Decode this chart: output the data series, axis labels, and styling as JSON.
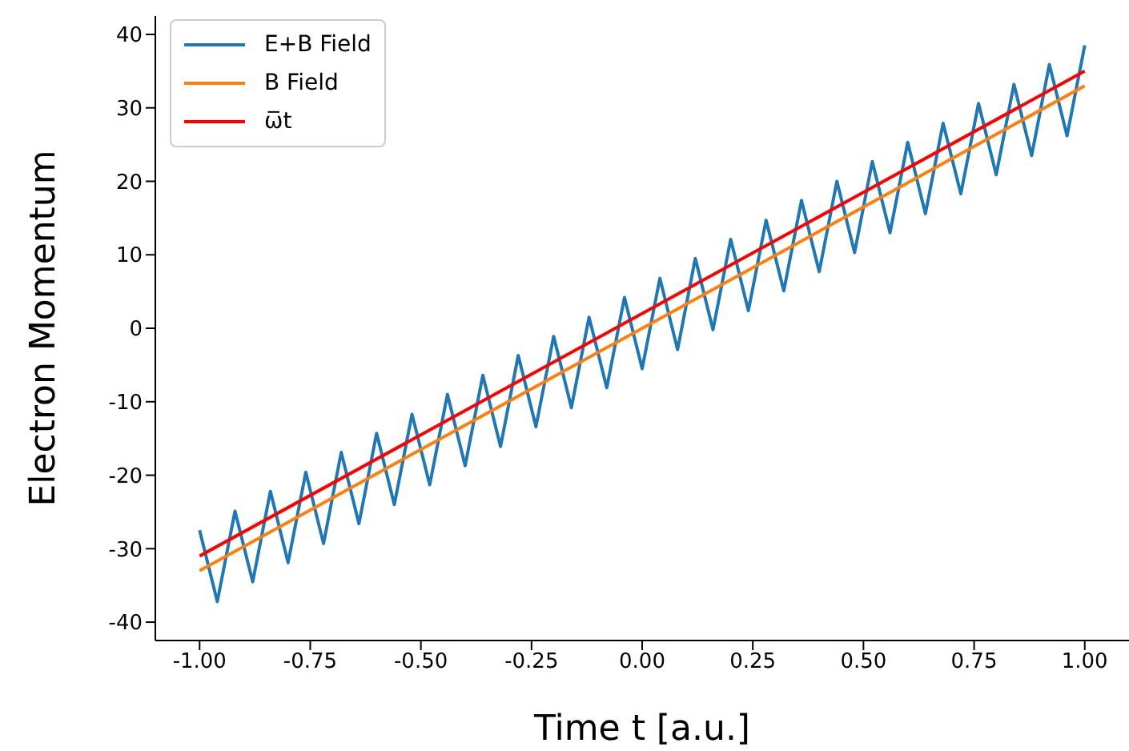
{
  "chart_data": {
    "type": "line",
    "xlabel": "Time t [a.u.]",
    "ylabel": "Electron Momentum",
    "legend": "top left",
    "grid": false,
    "marker": "none",
    "line_style": "solid",
    "xlim": [
      -1.1,
      1.1
    ],
    "ylim": [
      -42.5,
      42.5
    ],
    "xticks": [
      {
        "value": -1,
        "label": "-1.00"
      },
      {
        "value": -0.75,
        "label": "-0.75"
      },
      {
        "value": -0.5,
        "label": "-0.50"
      },
      {
        "value": -0.25,
        "label": "-0.25"
      },
      {
        "value": 0,
        "label": "0.00"
      },
      {
        "value": 0.25,
        "label": "0.25"
      },
      {
        "value": 0.5,
        "label": "0.50"
      },
      {
        "value": 0.75,
        "label": "0.75"
      },
      {
        "value": 1,
        "label": "1.00"
      }
    ],
    "yticks": [
      -40,
      -30,
      -20,
      -10,
      0,
      10,
      20,
      30,
      40
    ],
    "series": [
      {
        "name": "E+B Field",
        "color": "#1f77b4",
        "x": [
          -1,
          -0.96,
          -0.92,
          -0.88,
          -0.84,
          -0.8,
          -0.76,
          -0.72,
          -0.68,
          -0.64,
          -0.6,
          -0.56,
          -0.52,
          -0.48,
          -0.44,
          -0.4,
          -0.36,
          -0.32,
          -0.28,
          -0.24,
          -0.2,
          -0.16,
          -0.12,
          -0.08,
          -0.04,
          0,
          0.04,
          0.08,
          0.12,
          0.16,
          0.2,
          0.24,
          0.28,
          0.32,
          0.36,
          0.4,
          0.44,
          0.48,
          0.52,
          0.56,
          0.6,
          0.64,
          0.68,
          0.72,
          0.76,
          0.8,
          0.84,
          0.88,
          0.92,
          0.96,
          1
        ],
        "values": [
          -27.5,
          -37.2,
          -24.9,
          -34.5,
          -22.2,
          -31.9,
          -19.6,
          -29.3,
          -16.9,
          -26.6,
          -14.3,
          -24.0,
          -11.7,
          -21.3,
          -9.0,
          -18.7,
          -6.4,
          -16.1,
          -3.7,
          -13.4,
          -1.1,
          -10.8,
          1.5,
          -8.1,
          4.2,
          -5.5,
          6.8,
          -2.9,
          9.5,
          -0.2,
          12.1,
          2.4,
          14.7,
          5.1,
          17.4,
          7.7,
          20.0,
          10.3,
          22.7,
          13.0,
          25.3,
          15.6,
          27.9,
          18.3,
          30.6,
          20.9,
          33.2,
          23.5,
          35.9,
          26.2,
          38.5
        ]
      },
      {
        "name": "B Field",
        "color": "#ff7f0e",
        "x": [
          -1,
          1
        ],
        "values": [
          -33,
          33
        ]
      },
      {
        "name": "ω̅t",
        "color": "#ff0000",
        "x": [
          -1,
          1
        ],
        "values": [
          -31,
          35
        ]
      }
    ]
  }
}
